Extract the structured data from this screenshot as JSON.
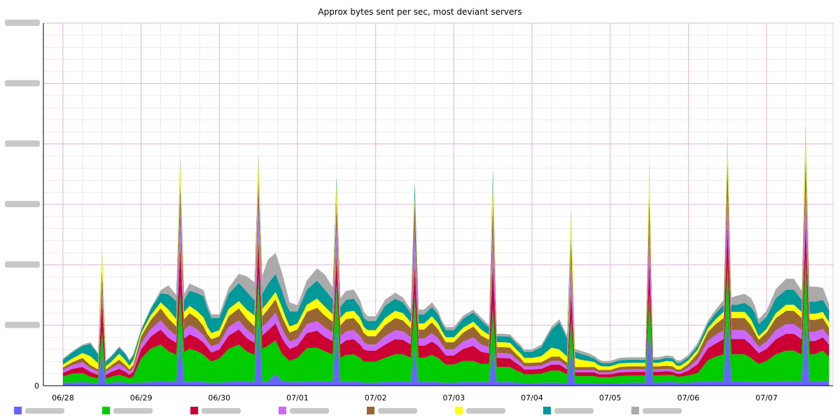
{
  "chart_data": {
    "type": "area",
    "stacked": true,
    "title": "Approx bytes sent per sec, most deviant servers",
    "xlabel": "",
    "ylabel": "",
    "x_tick_labels": [
      "06/28",
      "06/29",
      "06/30",
      "07/01",
      "07/02",
      "07/03",
      "07/04",
      "07/05",
      "07/06",
      "07/07"
    ],
    "y_tick_labels": [
      "0",
      "",
      "",
      "",
      "",
      "",
      ""
    ],
    "ylim": [
      0,
      6
    ],
    "grid": true,
    "legend_placement": "bottom",
    "x_days": [
      0,
      0.12,
      0.25,
      0.35,
      0.45,
      0.5,
      0.55,
      0.62,
      0.72,
      0.8,
      0.85,
      0.9,
      1,
      1.12,
      1.25,
      1.35,
      1.45,
      1.5,
      1.55,
      1.62,
      1.72,
      1.8,
      1.85,
      1.9,
      2,
      2.12,
      2.25,
      2.35,
      2.45,
      2.5,
      2.55,
      2.62,
      2.72,
      2.8,
      2.85,
      2.9,
      3,
      3.12,
      3.25,
      3.35,
      3.45,
      3.5,
      3.55,
      3.62,
      3.72,
      3.8,
      3.85,
      3.9,
      4,
      4.12,
      4.25,
      4.35,
      4.45,
      4.5,
      4.55,
      4.62,
      4.72,
      4.8,
      4.85,
      4.9,
      5,
      5.12,
      5.25,
      5.35,
      5.45,
      5.5,
      5.55,
      5.62,
      5.72,
      5.8,
      5.85,
      5.9,
      6,
      6.12,
      6.25,
      6.35,
      6.45,
      6.5,
      6.55,
      6.62,
      6.72,
      6.8,
      6.85,
      6.9,
      7,
      7.12,
      7.25,
      7.35,
      7.45,
      7.5,
      7.55,
      7.62,
      7.72,
      7.8,
      7.85,
      7.9,
      8,
      8.12,
      8.25,
      8.35,
      8.45,
      8.5,
      8.55,
      8.62,
      8.72,
      8.8,
      8.85,
      8.9,
      9,
      9.12,
      9.25,
      9.35,
      9.45,
      9.5,
      9.55,
      9.62,
      9.72,
      9.8
    ],
    "series": [
      {
        "color": "#6666ff",
        "values": [
          0.05,
          0.05,
          0.06,
          0.05,
          0.04,
          0.5,
          0.04,
          0.05,
          0.06,
          0.05,
          0.04,
          0.05,
          0.05,
          0.06,
          0.08,
          0.07,
          0.06,
          0.85,
          0.06,
          0.06,
          0.07,
          0.06,
          0.05,
          0.05,
          0.05,
          0.06,
          0.08,
          0.07,
          0.06,
          1.1,
          0.06,
          0.06,
          0.2,
          0.08,
          0.07,
          0.06,
          0.06,
          0.07,
          0.08,
          0.07,
          0.07,
          0.9,
          0.06,
          0.06,
          0.07,
          0.06,
          0.05,
          0.05,
          0.05,
          0.06,
          0.07,
          0.07,
          0.06,
          0.6,
          0.06,
          0.06,
          0.06,
          0.06,
          0.05,
          0.05,
          0.05,
          0.06,
          0.06,
          0.06,
          0.06,
          0.6,
          0.06,
          0.06,
          0.06,
          0.05,
          0.05,
          0.04,
          0.04,
          0.05,
          0.05,
          0.05,
          0.04,
          0.6,
          0.04,
          0.04,
          0.04,
          0.04,
          0.04,
          0.04,
          0.04,
          0.04,
          0.05,
          0.05,
          0.05,
          0.9,
          0.05,
          0.05,
          0.06,
          0.06,
          0.05,
          0.05,
          0.05,
          0.06,
          0.07,
          0.08,
          0.07,
          1.1,
          0.07,
          0.07,
          0.07,
          0.06,
          0.06,
          0.06,
          0.06,
          0.07,
          0.08,
          0.08,
          0.07,
          1.1,
          0.07,
          0.07,
          0.08,
          0.08
        ]
      },
      {
        "color": "#00cc00",
        "values": [
          0.1,
          0.15,
          0.15,
          0.1,
          0.08,
          0.4,
          0.08,
          0.1,
          0.12,
          0.1,
          0.08,
          0.1,
          0.4,
          0.55,
          0.6,
          0.5,
          0.45,
          0.7,
          0.5,
          0.55,
          0.5,
          0.45,
          0.4,
          0.35,
          0.4,
          0.55,
          0.6,
          0.5,
          0.45,
          0.7,
          0.55,
          0.6,
          0.55,
          0.45,
          0.4,
          0.35,
          0.4,
          0.55,
          0.55,
          0.5,
          0.45,
          0.8,
          0.4,
          0.45,
          0.45,
          0.4,
          0.35,
          0.35,
          0.35,
          0.4,
          0.45,
          0.45,
          0.4,
          0.9,
          0.4,
          0.4,
          0.45,
          0.4,
          0.35,
          0.3,
          0.3,
          0.35,
          0.35,
          0.3,
          0.3,
          0.7,
          0.25,
          0.25,
          0.25,
          0.2,
          0.18,
          0.15,
          0.15,
          0.15,
          0.2,
          0.2,
          0.15,
          0.5,
          0.12,
          0.12,
          0.12,
          0.12,
          0.1,
          0.1,
          0.1,
          0.12,
          0.12,
          0.12,
          0.12,
          0.6,
          0.12,
          0.12,
          0.12,
          0.12,
          0.1,
          0.1,
          0.12,
          0.15,
          0.35,
          0.4,
          0.45,
          0.9,
          0.45,
          0.45,
          0.45,
          0.4,
          0.35,
          0.3,
          0.35,
          0.45,
          0.5,
          0.5,
          0.45,
          1.0,
          0.45,
          0.45,
          0.5,
          0.4
        ]
      },
      {
        "color": "#cc0033",
        "values": [
          0.06,
          0.08,
          0.1,
          0.08,
          0.06,
          0.5,
          0.06,
          0.08,
          0.1,
          0.08,
          0.06,
          0.08,
          0.15,
          0.2,
          0.25,
          0.22,
          0.2,
          0.75,
          0.22,
          0.24,
          0.22,
          0.2,
          0.18,
          0.15,
          0.15,
          0.22,
          0.25,
          0.22,
          0.2,
          0.6,
          0.22,
          0.25,
          0.28,
          0.26,
          0.22,
          0.2,
          0.2,
          0.25,
          0.28,
          0.24,
          0.22,
          0.45,
          0.22,
          0.24,
          0.25,
          0.22,
          0.2,
          0.18,
          0.18,
          0.22,
          0.25,
          0.24,
          0.22,
          0.5,
          0.2,
          0.2,
          0.22,
          0.2,
          0.18,
          0.15,
          0.15,
          0.2,
          0.25,
          0.2,
          0.18,
          0.7,
          0.15,
          0.15,
          0.14,
          0.12,
          0.1,
          0.08,
          0.08,
          0.08,
          0.1,
          0.1,
          0.08,
          0.45,
          0.06,
          0.06,
          0.06,
          0.06,
          0.05,
          0.05,
          0.05,
          0.06,
          0.06,
          0.06,
          0.06,
          0.55,
          0.06,
          0.06,
          0.06,
          0.05,
          0.05,
          0.05,
          0.08,
          0.15,
          0.2,
          0.22,
          0.25,
          0.65,
          0.25,
          0.25,
          0.25,
          0.22,
          0.2,
          0.18,
          0.2,
          0.25,
          0.28,
          0.28,
          0.25,
          0.6,
          0.22,
          0.22,
          0.22,
          0.2
        ]
      },
      {
        "color": "#cc66ff",
        "values": [
          0.05,
          0.06,
          0.08,
          0.06,
          0.05,
          0.2,
          0.05,
          0.06,
          0.08,
          0.06,
          0.05,
          0.06,
          0.1,
          0.12,
          0.15,
          0.14,
          0.12,
          0.55,
          0.14,
          0.15,
          0.14,
          0.12,
          0.1,
          0.1,
          0.1,
          0.14,
          0.15,
          0.14,
          0.12,
          0.55,
          0.14,
          0.15,
          0.18,
          0.16,
          0.14,
          0.12,
          0.12,
          0.15,
          0.16,
          0.15,
          0.14,
          0.5,
          0.14,
          0.15,
          0.15,
          0.14,
          0.12,
          0.1,
          0.1,
          0.14,
          0.15,
          0.14,
          0.12,
          0.55,
          0.12,
          0.12,
          0.14,
          0.12,
          0.1,
          0.1,
          0.1,
          0.12,
          0.14,
          0.12,
          0.1,
          0.55,
          0.08,
          0.08,
          0.08,
          0.07,
          0.06,
          0.05,
          0.05,
          0.05,
          0.06,
          0.06,
          0.05,
          0.5,
          0.04,
          0.04,
          0.04,
          0.04,
          0.03,
          0.03,
          0.03,
          0.04,
          0.04,
          0.04,
          0.04,
          0.6,
          0.04,
          0.04,
          0.04,
          0.04,
          0.03,
          0.03,
          0.05,
          0.08,
          0.12,
          0.14,
          0.15,
          0.55,
          0.15,
          0.15,
          0.15,
          0.14,
          0.12,
          0.1,
          0.12,
          0.15,
          0.16,
          0.16,
          0.15,
          0.55,
          0.15,
          0.15,
          0.14,
          0.12
        ]
      },
      {
        "color": "#996633",
        "values": [
          0.04,
          0.05,
          0.07,
          0.05,
          0.04,
          0.3,
          0.04,
          0.05,
          0.07,
          0.05,
          0.04,
          0.05,
          0.12,
          0.15,
          0.2,
          0.18,
          0.15,
          0.5,
          0.18,
          0.2,
          0.18,
          0.15,
          0.12,
          0.12,
          0.12,
          0.18,
          0.2,
          0.18,
          0.15,
          0.5,
          0.18,
          0.2,
          0.22,
          0.2,
          0.18,
          0.15,
          0.15,
          0.2,
          0.22,
          0.2,
          0.18,
          0.4,
          0.18,
          0.2,
          0.2,
          0.18,
          0.15,
          0.14,
          0.14,
          0.18,
          0.2,
          0.18,
          0.15,
          0.5,
          0.15,
          0.15,
          0.18,
          0.15,
          0.14,
          0.12,
          0.12,
          0.15,
          0.18,
          0.15,
          0.12,
          0.5,
          0.1,
          0.1,
          0.1,
          0.08,
          0.07,
          0.06,
          0.06,
          0.06,
          0.07,
          0.07,
          0.06,
          0.4,
          0.05,
          0.05,
          0.05,
          0.05,
          0.04,
          0.04,
          0.04,
          0.05,
          0.05,
          0.05,
          0.05,
          0.5,
          0.05,
          0.05,
          0.05,
          0.05,
          0.04,
          0.04,
          0.06,
          0.1,
          0.15,
          0.18,
          0.2,
          0.5,
          0.2,
          0.2,
          0.2,
          0.18,
          0.15,
          0.12,
          0.15,
          0.2,
          0.22,
          0.22,
          0.2,
          0.55,
          0.2,
          0.2,
          0.18,
          0.15
        ]
      },
      {
        "color": "#ffff00",
        "values": [
          0.05,
          0.06,
          0.08,
          0.15,
          0.1,
          0.35,
          0.05,
          0.06,
          0.1,
          0.08,
          0.06,
          0.08,
          0.05,
          0.08,
          0.1,
          0.15,
          0.12,
          0.35,
          0.12,
          0.12,
          0.12,
          0.15,
          0.12,
          0.1,
          0.1,
          0.12,
          0.12,
          0.15,
          0.18,
          0.3,
          0.12,
          0.12,
          0.12,
          0.15,
          0.12,
          0.1,
          0.1,
          0.12,
          0.15,
          0.15,
          0.12,
          0.3,
          0.12,
          0.12,
          0.12,
          0.12,
          0.1,
          0.1,
          0.1,
          0.12,
          0.12,
          0.12,
          0.1,
          0.1,
          0.1,
          0.1,
          0.1,
          0.1,
          0.08,
          0.08,
          0.08,
          0.08,
          0.08,
          0.1,
          0.08,
          0.35,
          0.08,
          0.08,
          0.08,
          0.08,
          0.08,
          0.08,
          0.08,
          0.1,
          0.15,
          0.12,
          0.1,
          0.4,
          0.15,
          0.12,
          0.1,
          0.08,
          0.08,
          0.06,
          0.06,
          0.06,
          0.06,
          0.06,
          0.06,
          0.45,
          0.06,
          0.06,
          0.08,
          0.08,
          0.06,
          0.06,
          0.06,
          0.06,
          0.06,
          0.08,
          0.1,
          0.35,
          0.1,
          0.1,
          0.1,
          0.1,
          0.08,
          0.06,
          0.06,
          0.08,
          0.1,
          0.1,
          0.1,
          0.45,
          0.1,
          0.1,
          0.1,
          0.1
        ]
      },
      {
        "color": "#009999",
        "values": [
          0.08,
          0.1,
          0.12,
          0.2,
          0.15,
          0.03,
          0.08,
          0.08,
          0.1,
          0.1,
          0.08,
          0.08,
          0.05,
          0.1,
          0.15,
          0.25,
          0.3,
          0.05,
          0.2,
          0.25,
          0.3,
          0.35,
          0.3,
          0.25,
          0.2,
          0.25,
          0.3,
          0.3,
          0.25,
          0.05,
          0.25,
          0.3,
          0.3,
          0.28,
          0.25,
          0.25,
          0.2,
          0.25,
          0.3,
          0.28,
          0.25,
          0.1,
          0.18,
          0.2,
          0.2,
          0.18,
          0.15,
          0.15,
          0.15,
          0.2,
          0.2,
          0.18,
          0.15,
          0.2,
          0.15,
          0.15,
          0.15,
          0.15,
          0.12,
          0.12,
          0.12,
          0.15,
          0.15,
          0.15,
          0.12,
          0.15,
          0.1,
          0.1,
          0.1,
          0.1,
          0.1,
          0.1,
          0.1,
          0.15,
          0.3,
          0.45,
          0.3,
          0.05,
          0.1,
          0.1,
          0.08,
          0.06,
          0.06,
          0.05,
          0.05,
          0.05,
          0.05,
          0.05,
          0.05,
          0.05,
          0.05,
          0.05,
          0.05,
          0.05,
          0.05,
          0.05,
          0.05,
          0.06,
          0.08,
          0.1,
          0.12,
          0.05,
          0.12,
          0.12,
          0.15,
          0.2,
          0.25,
          0.2,
          0.2,
          0.25,
          0.25,
          0.25,
          0.2,
          0.05,
          0.2,
          0.2,
          0.2,
          0.2
        ]
      },
      {
        "color": "#aaaaaa",
        "values": [
          0.02,
          0.02,
          0.02,
          0.03,
          0.02,
          0.01,
          0.02,
          0.02,
          0.02,
          0.02,
          0.02,
          0.02,
          0.02,
          0.02,
          0.05,
          0.15,
          0.1,
          0.01,
          0.1,
          0.12,
          0.1,
          0.1,
          0.08,
          0.06,
          0.06,
          0.1,
          0.15,
          0.25,
          0.3,
          0.02,
          0.3,
          0.4,
          0.35,
          0.3,
          0.25,
          0.15,
          0.1,
          0.15,
          0.2,
          0.25,
          0.2,
          0.02,
          0.15,
          0.15,
          0.15,
          0.12,
          0.1,
          0.08,
          0.08,
          0.1,
          0.1,
          0.08,
          0.06,
          0.02,
          0.08,
          0.08,
          0.08,
          0.06,
          0.05,
          0.05,
          0.05,
          0.05,
          0.05,
          0.05,
          0.04,
          0.02,
          0.04,
          0.04,
          0.04,
          0.04,
          0.04,
          0.04,
          0.04,
          0.04,
          0.05,
          0.05,
          0.05,
          0.01,
          0.05,
          0.05,
          0.05,
          0.04,
          0.04,
          0.04,
          0.04,
          0.04,
          0.04,
          0.04,
          0.04,
          0.02,
          0.04,
          0.04,
          0.04,
          0.04,
          0.04,
          0.04,
          0.04,
          0.05,
          0.05,
          0.06,
          0.08,
          0.02,
          0.12,
          0.15,
          0.15,
          0.15,
          0.12,
          0.08,
          0.1,
          0.15,
          0.18,
          0.18,
          0.15,
          0.05,
          0.25,
          0.25,
          0.2,
          0.1
        ]
      }
    ],
    "legend_entries": [
      "",
      "",
      "",
      "",
      "",
      "",
      "",
      ""
    ]
  }
}
